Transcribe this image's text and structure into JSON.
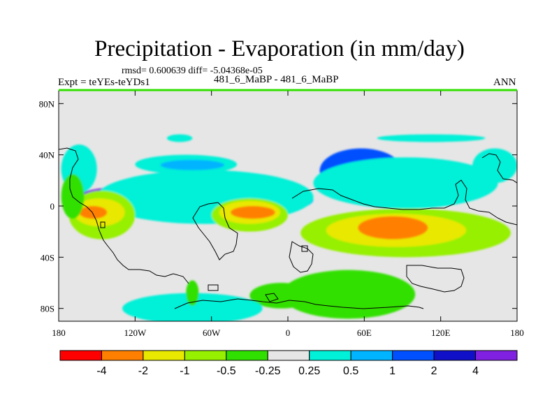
{
  "title": "Precipitation - Evaporation (in mm/day)",
  "stats": "rmsd= 0.600639 diff= -5.04368e-05",
  "left_label": "Expt = teYEs-teYDs1",
  "center_label": "481_6_MaBP - 481_6_MaBP",
  "right_label": "ANN",
  "chart_data": {
    "type": "heatmap",
    "title": "Precipitation - Evaporation (in mm/day)",
    "xlabel": "",
    "ylabel": "",
    "xlim": [
      -180,
      180
    ],
    "ylim": [
      -90,
      90
    ],
    "x_ticks": [
      {
        "value": -180,
        "label": "180"
      },
      {
        "value": -120,
        "label": "120W"
      },
      {
        "value": -60,
        "label": "60W"
      },
      {
        "value": 0,
        "label": "0"
      },
      {
        "value": 60,
        "label": "60E"
      },
      {
        "value": 120,
        "label": "120E"
      },
      {
        "value": 180,
        "label": "180"
      }
    ],
    "y_ticks": [
      {
        "value": 80,
        "label": "80N"
      },
      {
        "value": 40,
        "label": "40N"
      },
      {
        "value": 0,
        "label": "0"
      },
      {
        "value": -40,
        "label": "40S"
      },
      {
        "value": -80,
        "label": "80S"
      }
    ],
    "colorbar": {
      "levels": [
        "-4",
        "-2",
        "-1",
        "-0.5",
        "-0.25",
        "0.25",
        "0.5",
        "1",
        "2",
        "4"
      ],
      "colors": [
        "#ff0000",
        "#ff8000",
        "#e8e800",
        "#96f000",
        "#30e000",
        "#e6e6e6",
        "#00f0d8",
        "#00b4ff",
        "#0050ff",
        "#1010c8",
        "#8020e0"
      ]
    },
    "background_color": "#e6e6e6",
    "regions": [
      {
        "class": 10,
        "lon": [
          -170,
          10
        ],
        "lat": [
          -7,
          18
        ]
      },
      {
        "class": 9,
        "lon": [
          -150,
          12
        ],
        "lat": [
          -4,
          12
        ]
      },
      {
        "class": 8,
        "lon": [
          -155,
          15
        ],
        "lat": [
          -2,
          10
        ]
      },
      {
        "class": 7,
        "lon": [
          -155,
          20
        ],
        "lat": [
          -10,
          20
        ]
      },
      {
        "class": 6,
        "lon": [
          -150,
          20
        ],
        "lat": [
          -14,
          28
        ]
      },
      {
        "class": 3,
        "lon": [
          -172,
          -120
        ],
        "lat": [
          -26,
          12
        ]
      },
      {
        "class": 2,
        "lon": [
          -168,
          -128
        ],
        "lat": [
          -16,
          6
        ]
      },
      {
        "class": 1,
        "lon": [
          -164,
          -142
        ],
        "lat": [
          -10,
          0
        ]
      },
      {
        "class": 3,
        "lon": [
          -60,
          0
        ],
        "lat": [
          -20,
          6
        ]
      },
      {
        "class": 2,
        "lon": [
          -54,
          -6
        ],
        "lat": [
          -14,
          4
        ]
      },
      {
        "class": 1,
        "lon": [
          -45,
          -10
        ],
        "lat": [
          -10,
          0
        ]
      },
      {
        "class": 3,
        "lon": [
          10,
          175
        ],
        "lat": [
          -40,
          -2
        ]
      },
      {
        "class": 2,
        "lon": [
          30,
          140
        ],
        "lat": [
          -32,
          -6
        ]
      },
      {
        "class": 1,
        "lon": [
          55,
          110
        ],
        "lat": [
          -26,
          -8
        ]
      },
      {
        "class": 8,
        "lon": [
          25,
          90
        ],
        "lat": [
          10,
          45
        ]
      },
      {
        "class": 7,
        "lon": [
          55,
          145
        ],
        "lat": [
          5,
          25
        ]
      },
      {
        "class": 6,
        "lon": [
          20,
          165
        ],
        "lat": [
          -2,
          38
        ]
      },
      {
        "class": 6,
        "lon": [
          -120,
          -40
        ],
        "lat": [
          25,
          40
        ]
      },
      {
        "class": 7,
        "lon": [
          -100,
          -50
        ],
        "lat": [
          28,
          36
        ]
      },
      {
        "class": 4,
        "lon": [
          -30,
          20
        ],
        "lat": [
          -80,
          -60
        ]
      },
      {
        "class": 4,
        "lon": [
          -5,
          100
        ],
        "lat": [
          -88,
          -50
        ]
      },
      {
        "class": 6,
        "lon": [
          -130,
          -20
        ],
        "lat": [
          -92,
          -68
        ]
      },
      {
        "class": 4,
        "lon": [
          -80,
          -70
        ],
        "lat": [
          -78,
          -58
        ]
      },
      {
        "class": 6,
        "lon": [
          -178,
          -150
        ],
        "lat": [
          10,
          48
        ]
      },
      {
        "class": 4,
        "lon": [
          -178,
          -160
        ],
        "lat": [
          -10,
          25
        ]
      },
      {
        "class": 6,
        "lon": [
          145,
          180
        ],
        "lat": [
          18,
          45
        ]
      },
      {
        "class": 6,
        "lon": [
          -95,
          -75
        ],
        "lat": [
          50,
          56
        ]
      },
      {
        "class": 6,
        "lon": [
          70,
          155
        ],
        "lat": [
          50,
          56
        ]
      }
    ]
  }
}
